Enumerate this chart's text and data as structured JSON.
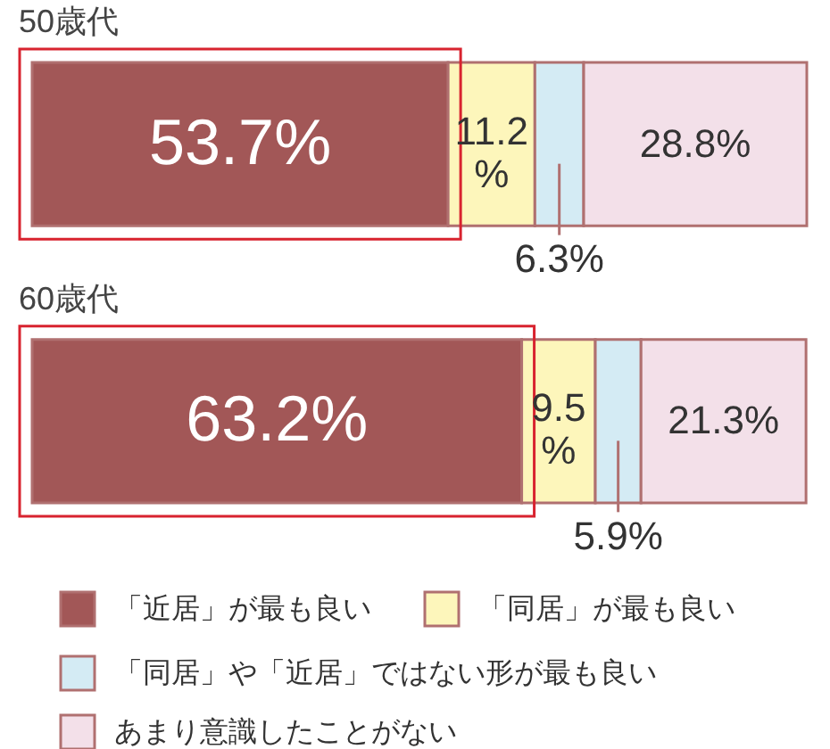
{
  "chart_data": {
    "type": "bar",
    "orientation": "horizontal",
    "stacked": true,
    "categories": [
      "50歳代",
      "60歳代"
    ],
    "series": [
      {
        "name": "「近居」が最も良い",
        "color": "#a25757",
        "values": [
          53.7,
          63.2
        ],
        "value_labels": [
          "53.7%",
          "63.2%"
        ]
      },
      {
        "name": "「同居」が最も良い",
        "color": "#fdf6bb",
        "values": [
          11.2,
          9.5
        ],
        "value_labels": [
          "11.2%",
          "9.5%"
        ]
      },
      {
        "name": "「同居」や「近居」ではない形が最も良い",
        "color": "#d4ebf4",
        "values": [
          6.3,
          5.9
        ],
        "value_labels": [
          "6.3%",
          "5.9%"
        ]
      },
      {
        "name": "あまり意識したことがない",
        "color": "#f3e0e9",
        "values": [
          28.8,
          21.3
        ],
        "value_labels": [
          "28.8%",
          "21.3%"
        ]
      }
    ],
    "legend": "bottom",
    "tick_labels": "y"
  }
}
